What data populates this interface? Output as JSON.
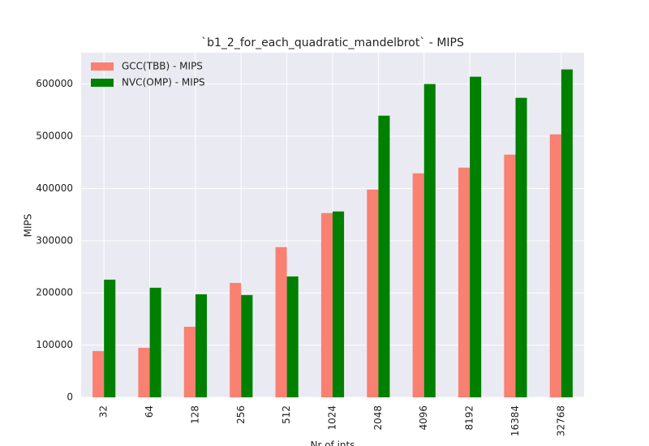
{
  "chart_data": {
    "type": "bar",
    "title": "`b1_2_for_each_quadratic_mandelbrot` - MIPS",
    "x_label": "Nr of ints",
    "y_label": "MIPS",
    "categories": [
      "32",
      "64",
      "128",
      "256",
      "512",
      "1024",
      "2048",
      "4096",
      "8192",
      "16384",
      "32768"
    ],
    "series": [
      {
        "name": "GCC(TBB) - MIPS",
        "color": "#fa8072",
        "values": [
          88600,
          94800,
          135200,
          219200,
          287600,
          352900,
          397900,
          429000,
          439900,
          464800,
          503600
        ]
      },
      {
        "name": "NVC(OMP) - MIPS",
        "color": "#008000",
        "values": [
          225400,
          209900,
          197400,
          195900,
          231600,
          356000,
          539400,
          600000,
          614000,
          573600,
          628000
        ]
      }
    ],
    "ylim": [
      0,
      660000
    ],
    "yticks": [
      0,
      100000,
      200000,
      300000,
      400000,
      500000,
      600000
    ],
    "grid": true,
    "legend": "upper-left"
  }
}
